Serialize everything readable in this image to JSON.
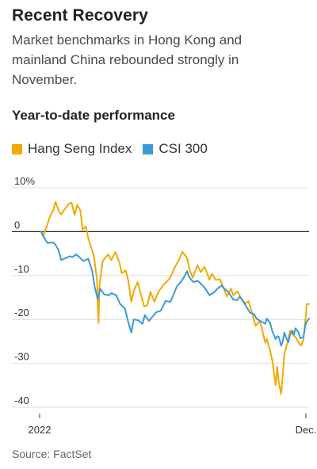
{
  "header": {
    "title": "Recent Recovery",
    "subtitle": "Market benchmarks in Hong Kong and mainland China rebounded strongly in November.",
    "section_title": "Year-to-date performance"
  },
  "source": "Source: FactSet",
  "colors": {
    "hang_seng": "#f2a900",
    "csi_300": "#3a9ad9",
    "grid": "#dddddd",
    "zero_line": "#222222"
  },
  "chart_data": {
    "type": "line",
    "title": "Year-to-date performance",
    "ylabel": "",
    "xlabel": "",
    "ylim": [
      -40,
      10
    ],
    "yticks": [
      10,
      0,
      -10,
      -20,
      -30,
      -40
    ],
    "ytick_labels": [
      "10%",
      "0",
      "-10",
      "-20",
      "-30",
      "-40"
    ],
    "x_axis": {
      "start": "2022-01-01",
      "end": "2022-12-05",
      "tick_labels": [
        "2022",
        "Dec."
      ],
      "tick_dates": [
        "2022-01-01",
        "2022-12-01"
      ]
    },
    "legend_position": "top-left",
    "grid": true,
    "series": [
      {
        "name": "Hang Seng Index",
        "color": "#f2a900",
        "points": [
          [
            "2022-01-03",
            0
          ],
          [
            "2022-01-05",
            -1.0
          ],
          [
            "2022-01-07",
            -0.3
          ],
          [
            "2022-01-11",
            1.8
          ],
          [
            "2022-01-14",
            3.5
          ],
          [
            "2022-01-18",
            4.8
          ],
          [
            "2022-01-21",
            6.8
          ],
          [
            "2022-01-25",
            4.7
          ],
          [
            "2022-01-28",
            3.9
          ],
          [
            "2022-02-01",
            5.0
          ],
          [
            "2022-02-07",
            6.4
          ],
          [
            "2022-02-10",
            6.6
          ],
          [
            "2022-02-14",
            3.8
          ],
          [
            "2022-02-17",
            6.1
          ],
          [
            "2022-02-21",
            4.9
          ],
          [
            "2022-02-24",
            0.4
          ],
          [
            "2022-02-28",
            1.2
          ],
          [
            "2022-03-03",
            -1.5
          ],
          [
            "2022-03-07",
            -3.8
          ],
          [
            "2022-03-10",
            -5.5
          ],
          [
            "2022-03-14",
            -11.0
          ],
          [
            "2022-03-15",
            -17.0
          ],
          [
            "2022-03-16",
            -20.8
          ],
          [
            "2022-03-17",
            -12.5
          ],
          [
            "2022-03-21",
            -6.8
          ],
          [
            "2022-03-24",
            -6.0
          ],
          [
            "2022-03-28",
            -5.2
          ],
          [
            "2022-04-01",
            -6.5
          ],
          [
            "2022-04-06",
            -4.6
          ],
          [
            "2022-04-11",
            -7.0
          ],
          [
            "2022-04-14",
            -9.5
          ],
          [
            "2022-04-19",
            -8.8
          ],
          [
            "2022-04-22",
            -11.0
          ],
          [
            "2022-04-26",
            -16.0
          ],
          [
            "2022-04-29",
            -13.5
          ],
          [
            "2022-05-04",
            -11.5
          ],
          [
            "2022-05-09",
            -15.0
          ],
          [
            "2022-05-12",
            -17.0
          ],
          [
            "2022-05-16",
            -16.8
          ],
          [
            "2022-05-20",
            -13.7
          ],
          [
            "2022-05-25",
            -16.0
          ],
          [
            "2022-05-30",
            -13.7
          ],
          [
            "2022-06-06",
            -12.0
          ],
          [
            "2022-06-13",
            -10.7
          ],
          [
            "2022-06-20",
            -8.0
          ],
          [
            "2022-06-24",
            -6.7
          ],
          [
            "2022-06-29",
            -4.6
          ],
          [
            "2022-07-05",
            -6.0
          ],
          [
            "2022-07-08",
            -8.6
          ],
          [
            "2022-07-12",
            -10.5
          ],
          [
            "2022-07-18",
            -7.6
          ],
          [
            "2022-07-22",
            -9.2
          ],
          [
            "2022-07-27",
            -8.0
          ],
          [
            "2022-08-02",
            -11.0
          ],
          [
            "2022-08-05",
            -9.6
          ],
          [
            "2022-08-10",
            -11.0
          ],
          [
            "2022-08-15",
            -10.8
          ],
          [
            "2022-08-19",
            -12.5
          ],
          [
            "2022-08-24",
            -14.8
          ],
          [
            "2022-08-29",
            -13.0
          ],
          [
            "2022-09-01",
            -14.5
          ],
          [
            "2022-09-06",
            -13.6
          ],
          [
            "2022-09-09",
            -14.6
          ],
          [
            "2022-09-15",
            -16.5
          ],
          [
            "2022-09-20",
            -15.8
          ],
          [
            "2022-09-26",
            -19.5
          ],
          [
            "2022-09-29",
            -21.5
          ],
          [
            "2022-10-04",
            -20.3
          ],
          [
            "2022-10-07",
            -22.3
          ],
          [
            "2022-10-11",
            -25.3
          ],
          [
            "2022-10-13",
            -24.5
          ],
          [
            "2022-10-17",
            -27.0
          ],
          [
            "2022-10-20",
            -29.5
          ],
          [
            "2022-10-24",
            -35.0
          ],
          [
            "2022-10-26",
            -30.8
          ],
          [
            "2022-10-28",
            -34.4
          ],
          [
            "2022-10-31",
            -37.0
          ],
          [
            "2022-11-02",
            -32.5
          ],
          [
            "2022-11-04",
            -28.0
          ],
          [
            "2022-11-07",
            -25.8
          ],
          [
            "2022-11-09",
            -24.7
          ],
          [
            "2022-11-11",
            -22.5
          ],
          [
            "2022-11-15",
            -23.5
          ],
          [
            "2022-11-18",
            -24.0
          ],
          [
            "2022-11-22",
            -25.3
          ],
          [
            "2022-11-25",
            -26.0
          ],
          [
            "2022-11-28",
            -24.5
          ],
          [
            "2022-11-30",
            -20.6
          ],
          [
            "2022-12-01",
            -19.0
          ],
          [
            "2022-12-02",
            -16.5
          ],
          [
            "2022-12-05",
            -16.5
          ]
        ]
      },
      {
        "name": "CSI 300",
        "color": "#3a9ad9",
        "points": [
          [
            "2022-01-03",
            0
          ],
          [
            "2022-01-05",
            -0.6
          ],
          [
            "2022-01-07",
            -1.5
          ],
          [
            "2022-01-11",
            -2.6
          ],
          [
            "2022-01-14",
            -2.5
          ],
          [
            "2022-01-18",
            -2.5
          ],
          [
            "2022-01-21",
            -3.0
          ],
          [
            "2022-01-25",
            -4.3
          ],
          [
            "2022-01-28",
            -6.5
          ],
          [
            "2022-02-08",
            -5.6
          ],
          [
            "2022-02-11",
            -5.8
          ],
          [
            "2022-02-16",
            -5.2
          ],
          [
            "2022-02-21",
            -6.0
          ],
          [
            "2022-02-25",
            -6.7
          ],
          [
            "2022-03-03",
            -6.2
          ],
          [
            "2022-03-08",
            -9.0
          ],
          [
            "2022-03-11",
            -12.5
          ],
          [
            "2022-03-15",
            -15.5
          ],
          [
            "2022-03-18",
            -13.0
          ],
          [
            "2022-03-23",
            -14.3
          ],
          [
            "2022-03-29",
            -14.5
          ],
          [
            "2022-04-01",
            -14.0
          ],
          [
            "2022-04-07",
            -14.5
          ],
          [
            "2022-04-12",
            -16.5
          ],
          [
            "2022-04-18",
            -17.5
          ],
          [
            "2022-04-22",
            -20.5
          ],
          [
            "2022-04-26",
            -23.0
          ],
          [
            "2022-04-29",
            -20.0
          ],
          [
            "2022-05-05",
            -20.2
          ],
          [
            "2022-05-10",
            -21.0
          ],
          [
            "2022-05-13",
            -19.0
          ],
          [
            "2022-05-18",
            -20.3
          ],
          [
            "2022-05-23",
            -19.3
          ],
          [
            "2022-05-27",
            -18.4
          ],
          [
            "2022-06-02",
            -18.0
          ],
          [
            "2022-06-08",
            -15.8
          ],
          [
            "2022-06-14",
            -16.0
          ],
          [
            "2022-06-17",
            -14.8
          ],
          [
            "2022-06-22",
            -12.5
          ],
          [
            "2022-06-27",
            -11.5
          ],
          [
            "2022-07-01",
            -10.4
          ],
          [
            "2022-07-05",
            -9.0
          ],
          [
            "2022-07-08",
            -10.5
          ],
          [
            "2022-07-13",
            -11.5
          ],
          [
            "2022-07-18",
            -11.2
          ],
          [
            "2022-07-22",
            -11.8
          ],
          [
            "2022-07-28",
            -13.0
          ],
          [
            "2022-08-02",
            -14.5
          ],
          [
            "2022-08-08",
            -13.8
          ],
          [
            "2022-08-12",
            -13.0
          ],
          [
            "2022-08-17",
            -12.3
          ],
          [
            "2022-08-22",
            -13.2
          ],
          [
            "2022-08-26",
            -13.8
          ],
          [
            "2022-09-01",
            -15.5
          ],
          [
            "2022-09-06",
            -15.6
          ],
          [
            "2022-09-09",
            -14.8
          ],
          [
            "2022-09-14",
            -16.0
          ],
          [
            "2022-09-19",
            -17.6
          ],
          [
            "2022-09-22",
            -18.5
          ],
          [
            "2022-09-27",
            -18.8
          ],
          [
            "2022-09-30",
            -19.8
          ],
          [
            "2022-10-11",
            -21.0
          ],
          [
            "2022-10-13",
            -19.8
          ],
          [
            "2022-10-17",
            -20.8
          ],
          [
            "2022-10-20",
            -22.7
          ],
          [
            "2022-10-24",
            -24.5
          ],
          [
            "2022-10-26",
            -23.8
          ],
          [
            "2022-10-28",
            -24.0
          ],
          [
            "2022-10-31",
            -26.0
          ],
          [
            "2022-11-02",
            -25.0
          ],
          [
            "2022-11-04",
            -23.0
          ],
          [
            "2022-11-07",
            -24.5
          ],
          [
            "2022-11-09",
            -25.2
          ],
          [
            "2022-11-11",
            -23.6
          ],
          [
            "2022-11-14",
            -22.5
          ],
          [
            "2022-11-16",
            -23.5
          ],
          [
            "2022-11-18",
            -22.0
          ],
          [
            "2022-11-22",
            -23.0
          ],
          [
            "2022-11-24",
            -24.3
          ],
          [
            "2022-11-28",
            -24.0
          ],
          [
            "2022-11-30",
            -21.5
          ],
          [
            "2022-12-02",
            -20.5
          ],
          [
            "2022-12-05",
            -19.8
          ]
        ]
      }
    ]
  }
}
